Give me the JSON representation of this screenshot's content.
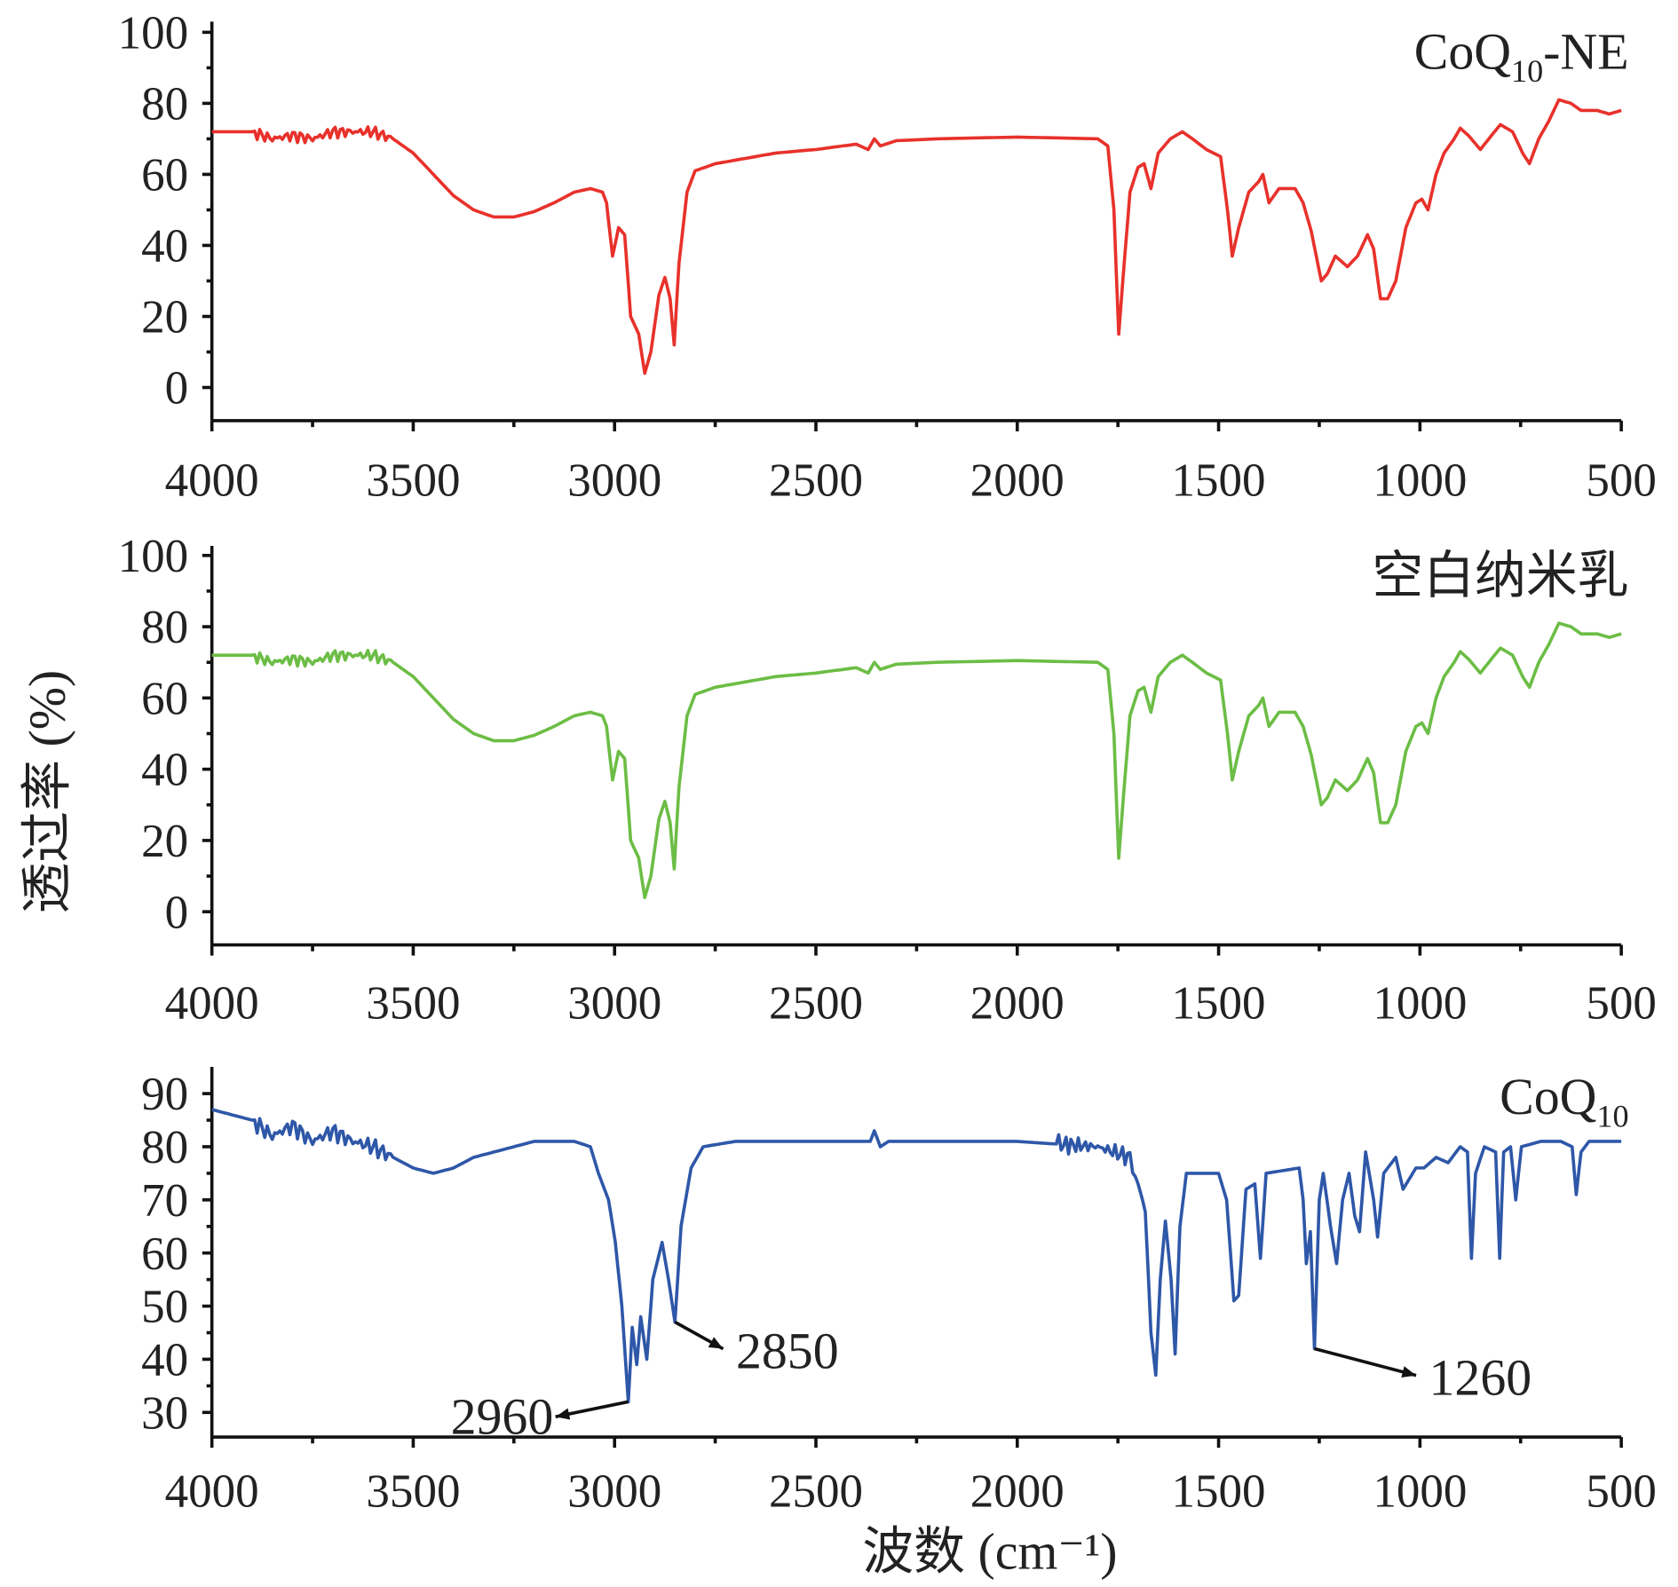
{
  "chart_data": [
    {
      "type": "line",
      "label": "CoQ",
      "label_sub": "10",
      "label_suffix": "-NE",
      "color": "#e8312b",
      "xlim": [
        4000,
        500
      ],
      "ylim": [
        0,
        100
      ],
      "yticks": [
        "0",
        "20",
        "40",
        "60",
        "80",
        "100"
      ],
      "points": [
        [
          4000,
          72
        ],
        [
          3900,
          72
        ],
        [
          3850,
          70
        ],
        [
          3800,
          71
        ],
        [
          3750,
          70
        ],
        [
          3700,
          72
        ],
        [
          3650,
          72
        ],
        [
          3600,
          72
        ],
        [
          3550,
          70
        ],
        [
          3500,
          66
        ],
        [
          3450,
          60
        ],
        [
          3400,
          54
        ],
        [
          3350,
          50
        ],
        [
          3300,
          48
        ],
        [
          3250,
          48
        ],
        [
          3200,
          49.5
        ],
        [
          3150,
          52
        ],
        [
          3100,
          55
        ],
        [
          3060,
          56
        ],
        [
          3030,
          55
        ],
        [
          3020,
          52
        ],
        [
          3005,
          37
        ],
        [
          2990,
          45
        ],
        [
          2975,
          43
        ],
        [
          2960,
          20
        ],
        [
          2940,
          15
        ],
        [
          2925,
          4
        ],
        [
          2910,
          10
        ],
        [
          2890,
          26
        ],
        [
          2875,
          31
        ],
        [
          2862,
          25
        ],
        [
          2852,
          12
        ],
        [
          2840,
          35
        ],
        [
          2820,
          55
        ],
        [
          2800,
          61
        ],
        [
          2750,
          63
        ],
        [
          2700,
          64
        ],
        [
          2600,
          66
        ],
        [
          2500,
          67
        ],
        [
          2400,
          68.5
        ],
        [
          2370,
          67
        ],
        [
          2355,
          70
        ],
        [
          2340,
          68
        ],
        [
          2300,
          69.5
        ],
        [
          2200,
          70
        ],
        [
          2000,
          70.5
        ],
        [
          1800,
          70
        ],
        [
          1775,
          68
        ],
        [
          1760,
          50
        ],
        [
          1748,
          15
        ],
        [
          1738,
          30
        ],
        [
          1720,
          55
        ],
        [
          1700,
          62
        ],
        [
          1685,
          63
        ],
        [
          1668,
          56
        ],
        [
          1650,
          66
        ],
        [
          1620,
          70
        ],
        [
          1590,
          72
        ],
        [
          1565,
          70
        ],
        [
          1530,
          67
        ],
        [
          1495,
          65
        ],
        [
          1478,
          50
        ],
        [
          1466,
          37
        ],
        [
          1450,
          45
        ],
        [
          1425,
          55
        ],
        [
          1400,
          58
        ],
        [
          1390,
          60
        ],
        [
          1375,
          52
        ],
        [
          1350,
          56
        ],
        [
          1310,
          56
        ],
        [
          1290,
          52
        ],
        [
          1270,
          44
        ],
        [
          1245,
          30
        ],
        [
          1230,
          32
        ],
        [
          1210,
          37
        ],
        [
          1180,
          34
        ],
        [
          1155,
          37
        ],
        [
          1130,
          43
        ],
        [
          1115,
          39
        ],
        [
          1098,
          25
        ],
        [
          1080,
          25
        ],
        [
          1060,
          30
        ],
        [
          1035,
          45
        ],
        [
          1010,
          52
        ],
        [
          995,
          53
        ],
        [
          980,
          50
        ],
        [
          960,
          60
        ],
        [
          940,
          66
        ],
        [
          915,
          70
        ],
        [
          900,
          73
        ],
        [
          880,
          71
        ],
        [
          850,
          67
        ],
        [
          815,
          72
        ],
        [
          800,
          74
        ],
        [
          770,
          72
        ],
        [
          745,
          66
        ],
        [
          728,
          63
        ],
        [
          705,
          70
        ],
        [
          680,
          75
        ],
        [
          655,
          81
        ],
        [
          625,
          80
        ],
        [
          600,
          78
        ],
        [
          560,
          78
        ],
        [
          530,
          77
        ],
        [
          500,
          78
        ]
      ],
      "xticks": [
        "4000",
        "3500",
        "3000",
        "2500",
        "2000",
        "1500",
        "1000",
        "500"
      ]
    },
    {
      "type": "line",
      "label": "空白纳米乳",
      "color": "#6cbd45",
      "xlim": [
        4000,
        500
      ],
      "ylim": [
        0,
        100
      ],
      "yticks": [
        "0",
        "20",
        "40",
        "60",
        "80",
        "100"
      ],
      "points": "same-as-first",
      "xticks": [
        "4000",
        "3500",
        "3000",
        "2500",
        "2000",
        "1500",
        "1000",
        "500"
      ]
    },
    {
      "type": "line",
      "label": "CoQ",
      "label_sub": "10",
      "color": "#2e57a8",
      "xlim": [
        4000,
        500
      ],
      "ylim": [
        25,
        95
      ],
      "yticks": [
        "30",
        "40",
        "50",
        "60",
        "70",
        "80",
        "90"
      ],
      "points": [
        [
          4000,
          87
        ],
        [
          3950,
          86
        ],
        [
          3900,
          85
        ],
        [
          3850,
          82
        ],
        [
          3800,
          84
        ],
        [
          3750,
          81
        ],
        [
          3700,
          83
        ],
        [
          3650,
          81
        ],
        [
          3600,
          80
        ],
        [
          3550,
          78
        ],
        [
          3500,
          76
        ],
        [
          3450,
          75
        ],
        [
          3400,
          76
        ],
        [
          3350,
          78
        ],
        [
          3300,
          79
        ],
        [
          3250,
          80
        ],
        [
          3200,
          81
        ],
        [
          3100,
          81
        ],
        [
          3060,
          80
        ],
        [
          3040,
          75
        ],
        [
          3015,
          70
        ],
        [
          2998,
          62
        ],
        [
          2982,
          50
        ],
        [
          2966,
          32
        ],
        [
          2956,
          46
        ],
        [
          2945,
          39
        ],
        [
          2935,
          48
        ],
        [
          2920,
          40
        ],
        [
          2905,
          55
        ],
        [
          2882,
          62
        ],
        [
          2866,
          55
        ],
        [
          2850,
          47
        ],
        [
          2835,
          65
        ],
        [
          2810,
          76
        ],
        [
          2780,
          80
        ],
        [
          2700,
          81
        ],
        [
          2500,
          81
        ],
        [
          2365,
          81
        ],
        [
          2355,
          83
        ],
        [
          2340,
          80
        ],
        [
          2320,
          81
        ],
        [
          2000,
          81
        ],
        [
          1800,
          80
        ],
        [
          1720,
          78
        ],
        [
          1700,
          73
        ],
        [
          1682,
          68
        ],
        [
          1668,
          45
        ],
        [
          1656,
          37
        ],
        [
          1645,
          55
        ],
        [
          1632,
          66
        ],
        [
          1618,
          55
        ],
        [
          1608,
          41
        ],
        [
          1596,
          65
        ],
        [
          1580,
          75
        ],
        [
          1500,
          75
        ],
        [
          1480,
          70
        ],
        [
          1462,
          51
        ],
        [
          1450,
          52
        ],
        [
          1432,
          72
        ],
        [
          1410,
          73
        ],
        [
          1396,
          59
        ],
        [
          1382,
          75
        ],
        [
          1300,
          76
        ],
        [
          1290,
          70
        ],
        [
          1282,
          58
        ],
        [
          1272,
          64
        ],
        [
          1262,
          42
        ],
        [
          1250,
          70
        ],
        [
          1240,
          75
        ],
        [
          1222,
          65
        ],
        [
          1207,
          58
        ],
        [
          1192,
          70
        ],
        [
          1176,
          75
        ],
        [
          1162,
          67
        ],
        [
          1150,
          64
        ],
        [
          1135,
          79
        ],
        [
          1115,
          70
        ],
        [
          1105,
          63
        ],
        [
          1090,
          75
        ],
        [
          1060,
          78
        ],
        [
          1042,
          72
        ],
        [
          1010,
          76
        ],
        [
          990,
          76
        ],
        [
          960,
          78
        ],
        [
          930,
          77
        ],
        [
          900,
          80
        ],
        [
          882,
          79
        ],
        [
          872,
          59
        ],
        [
          862,
          75
        ],
        [
          840,
          80
        ],
        [
          812,
          79
        ],
        [
          802,
          59
        ],
        [
          792,
          79
        ],
        [
          775,
          80
        ],
        [
          762,
          70
        ],
        [
          748,
          80
        ],
        [
          700,
          81
        ],
        [
          650,
          81
        ],
        [
          622,
          80
        ],
        [
          612,
          71
        ],
        [
          600,
          79
        ],
        [
          580,
          81
        ],
        [
          500,
          81
        ]
      ],
      "xticks": [
        "4000",
        "3500",
        "3000",
        "2500",
        "2000",
        "1500",
        "1000",
        "500"
      ],
      "annotations": [
        {
          "text": "2960",
          "x": 2966,
          "y": 32
        },
        {
          "text": "2850",
          "x": 2850,
          "y": 47
        },
        {
          "text": "1260",
          "x": 1262,
          "y": 42
        }
      ]
    }
  ],
  "ylabel": "透过率 (%)",
  "xlabel": "波数 (cm⁻¹)"
}
